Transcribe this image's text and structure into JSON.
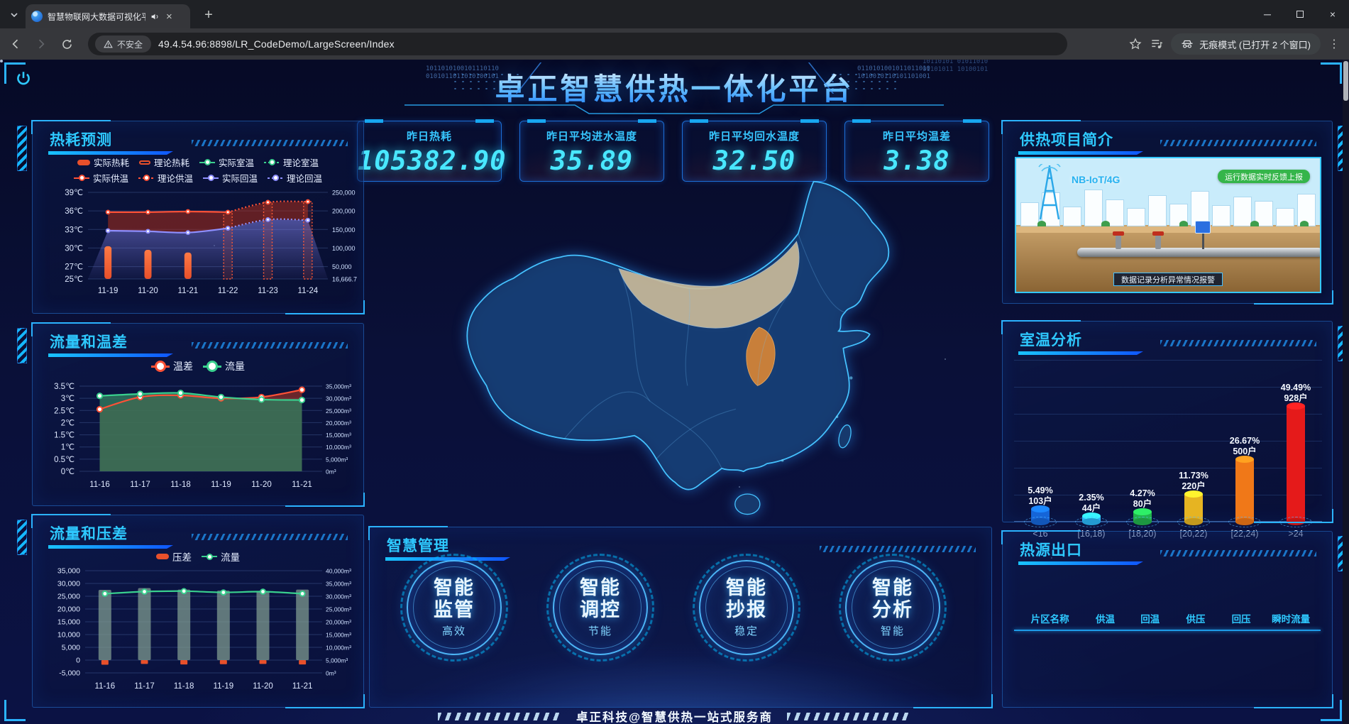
{
  "browser": {
    "tab_title": "智慧物联网大数据可视化平",
    "new_tab_label": "+",
    "security_label": "不安全",
    "url": "49.4.54.96:8898/LR_CodeDemo/LargeScreen/Index",
    "incognito_label": "无痕模式 (已打开 2 个窗口)"
  },
  "header": {
    "title": "卓正智慧供热一体化平台",
    "binary_left": "1011010100101110110\n0101011011010100101",
    "binary_right": "0110101001011011010\n1010010110101101001",
    "binary_corner": "10110101 01011010\n01101011 10100101"
  },
  "stats": [
    {
      "label": "昨日热耗",
      "value": "105382.90"
    },
    {
      "label": "昨日平均进水温度",
      "value": "35.89"
    },
    {
      "label": "昨日平均回水温度",
      "value": "32.50"
    },
    {
      "label": "昨日平均温差",
      "value": "3.38"
    }
  ],
  "panels": {
    "heat_forecast": {
      "title": "热耗预测"
    },
    "flow_temp": {
      "title": "流量和温差"
    },
    "flow_pressure": {
      "title": "流量和压差"
    },
    "project_intro": {
      "title": "供热项目简介",
      "tower_label": "NB-IoT/4G",
      "status_badge": "运行数据实时反馈上报",
      "alert_label": "数据记录分析异常情况报警"
    },
    "room_temp": {
      "title": "室温分析"
    },
    "heat_outlet": {
      "title": "热源出口",
      "columns": [
        "片区名称",
        "供温",
        "回温",
        "供压",
        "回压",
        "瞬时流量"
      ]
    },
    "smart_mgmt": {
      "title": "智慧管理",
      "items": [
        {
          "line1": "智能",
          "line2": "监管",
          "tag": "高效"
        },
        {
          "line1": "智能",
          "line2": "调控",
          "tag": "节能"
        },
        {
          "line1": "智能",
          "line2": "抄报",
          "tag": "稳定"
        },
        {
          "line1": "智能",
          "line2": "分析",
          "tag": "智能"
        }
      ]
    }
  },
  "footer": {
    "text": "卓正科技@智慧供热一站式服务商"
  },
  "chart_data": [
    {
      "type": "line+bar",
      "title": "热耗预测",
      "categories": [
        "11-19",
        "11-20",
        "11-21",
        "11-22",
        "11-23",
        "11-24"
      ],
      "legend": [
        "实际热耗",
        "理论热耗",
        "实际室温",
        "理论室温",
        "实际供温",
        "理论供温",
        "实际回温",
        "理论回温"
      ],
      "legend_colors": [
        "#e8502b",
        "#e8502b",
        "#3ccf8e",
        "#3ccf8e",
        "#ff5136",
        "#ff5136",
        "#8f8fff",
        "#8f8fff"
      ],
      "y_left": {
        "ticks": [
          "39℃",
          "36℃",
          "33℃",
          "30℃",
          "27℃",
          "25℃"
        ],
        "tick_values": [
          39,
          36,
          33,
          30,
          27,
          25
        ],
        "min": 25,
        "max": 39
      },
      "y_right": {
        "ticks": [
          "250,000",
          "200,000",
          "150,000",
          "100,000",
          "50,000",
          "16,666.7"
        ],
        "min": 16666.7,
        "max": 250000
      },
      "series": [
        {
          "name": "实际/理论供温",
          "kind": "line",
          "color": "#ff5136",
          "values": [
            35.8,
            35.8,
            35.9,
            35.8,
            37.4,
            37.5
          ],
          "solid_until": 3
        },
        {
          "name": "实际/理论回温",
          "kind": "line",
          "color": "#8f8fff",
          "values": [
            32.8,
            32.7,
            32.5,
            33.2,
            34.6,
            34.5
          ],
          "solid_until": 3
        },
        {
          "name": "实际热耗",
          "kind": "bar",
          "color": "#ff6a3d",
          "values": [
            105000,
            95000,
            88000,
            null,
            null,
            null
          ]
        },
        {
          "name": "理论热耗",
          "kind": "bar-outline",
          "color": "#ff5a36",
          "values": [
            null,
            null,
            null,
            210000,
            228000,
            230000
          ]
        }
      ]
    },
    {
      "type": "line-area",
      "title": "流量和温差",
      "categories": [
        "11-16",
        "11-17",
        "11-18",
        "11-19",
        "11-20",
        "11-21"
      ],
      "legend": [
        "温差",
        "流量"
      ],
      "legend_colors": [
        "#ff5136",
        "#39d08e"
      ],
      "y_left": {
        "ticks": [
          "3.5℃",
          "3℃",
          "2.5℃",
          "2℃",
          "1.5℃",
          "1℃",
          "0.5℃",
          "0℃"
        ],
        "min": 0,
        "max": 3.5
      },
      "y_right": {
        "ticks": [
          "35,000m³",
          "30,000m³",
          "25,000m³",
          "20,000m³",
          "15,000m³",
          "10,000m³",
          "5,000m³",
          "0m³"
        ],
        "min": 0,
        "max": 35000
      },
      "series": [
        {
          "name": "温差",
          "color": "#ff5136",
          "axis": "left",
          "values": [
            2.55,
            3.05,
            3.12,
            3.0,
            3.05,
            3.35
          ]
        },
        {
          "name": "流量",
          "color": "#39d08e",
          "axis": "right",
          "values": [
            31000,
            31800,
            32200,
            30500,
            29500,
            29300
          ]
        }
      ]
    },
    {
      "type": "bar+line",
      "title": "流量和压差",
      "categories": [
        "11-16",
        "11-17",
        "11-18",
        "11-19",
        "11-20",
        "11-21"
      ],
      "legend": [
        "压差",
        "流量"
      ],
      "legend_colors": [
        "#e8502b",
        "#39d08e"
      ],
      "y_left": {
        "ticks": [
          "35,000",
          "30,000",
          "25,000",
          "20,000",
          "15,000",
          "10,000",
          "5,000",
          "0",
          "-5,000"
        ],
        "min": -5000,
        "max": 35000
      },
      "y_right": {
        "ticks": [
          "40,000m³",
          "35,000m³",
          "30,000m³",
          "25,000m³",
          "20,000m³",
          "15,000m³",
          "10,000m³",
          "5,000m³",
          "0m³"
        ],
        "min": 0,
        "max": 40000
      },
      "series": [
        {
          "name": "压差",
          "kind": "bar",
          "color": "#e8502b",
          "values": [
            -1800,
            -1500,
            -1700,
            -1600,
            -1500,
            -1700
          ]
        },
        {
          "name": "流量",
          "kind": "bar+line",
          "bar_color": "#7d998f",
          "line_color": "#39d08e",
          "bar_values": [
            27500,
            28200,
            27600,
            27200,
            27100,
            27600
          ],
          "line_values": [
            26000,
            26800,
            27000,
            26500,
            26800,
            26000
          ]
        }
      ]
    },
    {
      "type": "bar",
      "title": "室温分析",
      "categories": [
        "<16",
        "[16,18)",
        "[18,20)",
        "[20,22)",
        "[22,24)",
        ">24"
      ],
      "pct": [
        5.49,
        2.35,
        4.27,
        11.73,
        26.67,
        49.49
      ],
      "pct_labels": [
        "5.49%",
        "2.35%",
        "4.27%",
        "11.73%",
        "26.67%",
        "49.49%"
      ],
      "count_labels": [
        "103户",
        "44户",
        "80户",
        "220户",
        "500户",
        "928户"
      ],
      "colors": [
        "#1565d8",
        "#29b6f6",
        "#22b14c",
        "#e6b422",
        "#f07818",
        "#e51a1a"
      ]
    }
  ]
}
